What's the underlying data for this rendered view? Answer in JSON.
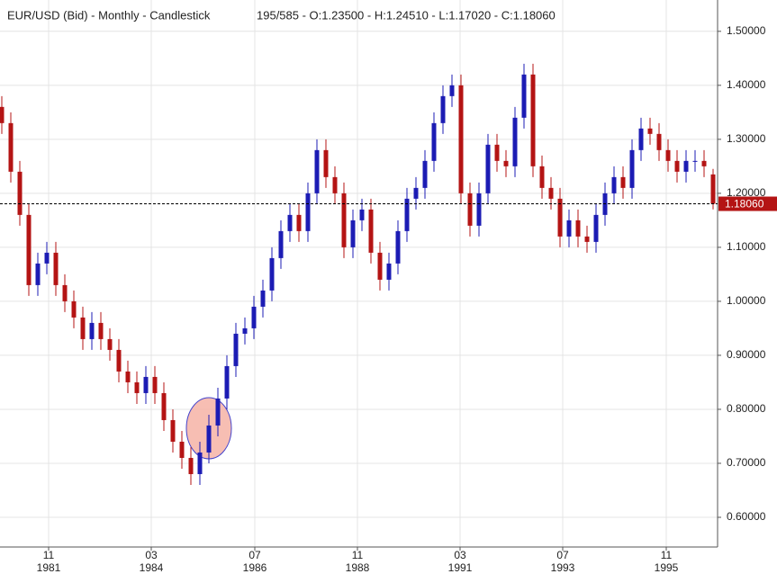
{
  "chart_data": {
    "type": "candlestick",
    "title": "EUR/USD (Bid) - Monthly - Candlestick",
    "info": "195/585 - O:1.23500 - H:1.24510 - L:1.17020 - C:1.18060",
    "up_color": "#1c1cb4",
    "down_color": "#b41414",
    "grid": true,
    "open": [
      1.36,
      1.33,
      1.24,
      1.16,
      1.03,
      1.07,
      1.09,
      1.03,
      1.0,
      0.97,
      0.93,
      0.96,
      0.93,
      0.91,
      0.87,
      0.85,
      0.83,
      0.86,
      0.83,
      0.78,
      0.74,
      0.71,
      0.68,
      0.72,
      0.77,
      0.82,
      0.88,
      0.94,
      0.95,
      0.99,
      1.02,
      1.08,
      1.13,
      1.16,
      1.13,
      1.2,
      1.28,
      1.23,
      1.2,
      1.1,
      1.15,
      1.17,
      1.09,
      1.04,
      1.07,
      1.13,
      1.19,
      1.21,
      1.26,
      1.33,
      1.38,
      1.4,
      1.2,
      1.14,
      1.2,
      1.29,
      1.26,
      1.25,
      1.34,
      1.42,
      1.25,
      1.21,
      1.19,
      1.12,
      1.15,
      1.12,
      1.11,
      1.16,
      1.2,
      1.23,
      1.21,
      1.28,
      1.32,
      1.31,
      1.28,
      1.26,
      1.24,
      1.26,
      1.26,
      1.235
    ],
    "high": [
      1.38,
      1.35,
      1.26,
      1.18,
      1.09,
      1.11,
      1.11,
      1.05,
      1.02,
      0.99,
      0.98,
      0.98,
      0.95,
      0.93,
      0.89,
      0.87,
      0.88,
      0.88,
      0.85,
      0.8,
      0.76,
      0.73,
      0.74,
      0.79,
      0.84,
      0.9,
      0.96,
      0.97,
      1.01,
      1.04,
      1.1,
      1.15,
      1.18,
      1.18,
      1.22,
      1.3,
      1.3,
      1.25,
      1.22,
      1.17,
      1.19,
      1.19,
      1.11,
      1.09,
      1.15,
      1.21,
      1.23,
      1.28,
      1.35,
      1.4,
      1.42,
      1.42,
      1.22,
      1.22,
      1.31,
      1.31,
      1.28,
      1.36,
      1.44,
      1.44,
      1.27,
      1.23,
      1.21,
      1.17,
      1.17,
      1.14,
      1.18,
      1.22,
      1.25,
      1.25,
      1.3,
      1.34,
      1.34,
      1.33,
      1.3,
      1.28,
      1.28,
      1.28,
      1.28,
      1.2451
    ],
    "low": [
      1.31,
      1.22,
      1.14,
      1.01,
      1.01,
      1.05,
      1.01,
      0.98,
      0.95,
      0.91,
      0.91,
      0.91,
      0.89,
      0.85,
      0.83,
      0.81,
      0.81,
      0.81,
      0.76,
      0.72,
      0.69,
      0.66,
      0.66,
      0.7,
      0.75,
      0.8,
      0.86,
      0.92,
      0.93,
      0.97,
      1.0,
      1.06,
      1.11,
      1.11,
      1.11,
      1.18,
      1.21,
      1.18,
      1.08,
      1.08,
      1.13,
      1.07,
      1.02,
      1.02,
      1.05,
      1.11,
      1.17,
      1.19,
      1.24,
      1.31,
      1.36,
      1.18,
      1.12,
      1.12,
      1.18,
      1.24,
      1.23,
      1.23,
      1.32,
      1.23,
      1.19,
      1.17,
      1.1,
      1.1,
      1.1,
      1.09,
      1.09,
      1.14,
      1.18,
      1.19,
      1.19,
      1.26,
      1.29,
      1.26,
      1.24,
      1.22,
      1.22,
      1.24,
      1.23,
      1.1702
    ],
    "close": [
      1.33,
      1.24,
      1.16,
      1.03,
      1.07,
      1.09,
      1.03,
      1.0,
      0.97,
      0.93,
      0.96,
      0.93,
      0.91,
      0.87,
      0.85,
      0.83,
      0.86,
      0.83,
      0.78,
      0.74,
      0.71,
      0.68,
      0.72,
      0.77,
      0.82,
      0.88,
      0.94,
      0.95,
      0.99,
      1.02,
      1.08,
      1.13,
      1.16,
      1.13,
      1.2,
      1.28,
      1.23,
      1.2,
      1.1,
      1.15,
      1.17,
      1.09,
      1.04,
      1.07,
      1.13,
      1.19,
      1.21,
      1.26,
      1.33,
      1.38,
      1.4,
      1.2,
      1.14,
      1.2,
      1.29,
      1.26,
      1.25,
      1.34,
      1.42,
      1.25,
      1.21,
      1.19,
      1.12,
      1.15,
      1.12,
      1.11,
      1.16,
      1.2,
      1.23,
      1.21,
      1.28,
      1.32,
      1.31,
      1.28,
      1.26,
      1.24,
      1.26,
      1.26,
      1.25,
      1.1806
    ],
    "xlim": [
      -0.2,
      79.5
    ],
    "xticks": [
      {
        "value": 5.2,
        "label": "11",
        "year": "1981"
      },
      {
        "value": 16.6,
        "label": "03",
        "year": "1984"
      },
      {
        "value": 28.1,
        "label": "07",
        "year": "1986"
      },
      {
        "value": 39.5,
        "label": "11",
        "year": "1988"
      },
      {
        "value": 50.9,
        "label": "03",
        "year": "1991"
      },
      {
        "value": 62.3,
        "label": "07",
        "year": "1993"
      },
      {
        "value": 73.8,
        "label": "11",
        "year": "1995"
      }
    ],
    "ylim": [
      0.545,
      1.558
    ],
    "yticks": [
      {
        "value": 0.6,
        "label": "0.60000"
      },
      {
        "value": 0.7,
        "label": "0.70000"
      },
      {
        "value": 0.8,
        "label": "0.80000"
      },
      {
        "value": 0.9,
        "label": "0.90000"
      },
      {
        "value": 1.0,
        "label": "1.00000"
      },
      {
        "value": 1.1,
        "label": "1.10000"
      },
      {
        "value": 1.2,
        "label": "1.20000"
      },
      {
        "value": 1.3,
        "label": "1.30000"
      },
      {
        "value": 1.4,
        "label": "1.40000"
      },
      {
        "value": 1.5,
        "label": "1.50000"
      }
    ],
    "last_price": {
      "value": 1.1806,
      "label": "1.18060"
    }
  }
}
